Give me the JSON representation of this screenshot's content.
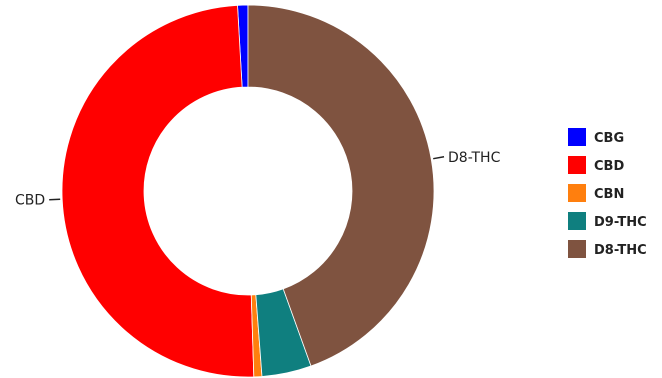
{
  "chart_data": {
    "type": "pie",
    "donut": true,
    "slices": [
      {
        "name": "CBG",
        "value": 0.9,
        "color": "#0000ff"
      },
      {
        "name": "CBD",
        "value": 49.6,
        "color": "#ff0000"
      },
      {
        "name": "CBN",
        "value": 0.7,
        "color": "#ff7f0e"
      },
      {
        "name": "D9-THC",
        "value": 4.3,
        "color": "#0f7f7f"
      },
      {
        "name": "D8-THC",
        "value": 44.5,
        "color": "#7f5340"
      }
    ],
    "slice_labels": [
      "CBD",
      "D8-THC"
    ],
    "legend": {
      "placement": "right",
      "entries": [
        "CBG",
        "CBD",
        "CBN",
        "D9-THC",
        "D8-THC"
      ]
    }
  }
}
